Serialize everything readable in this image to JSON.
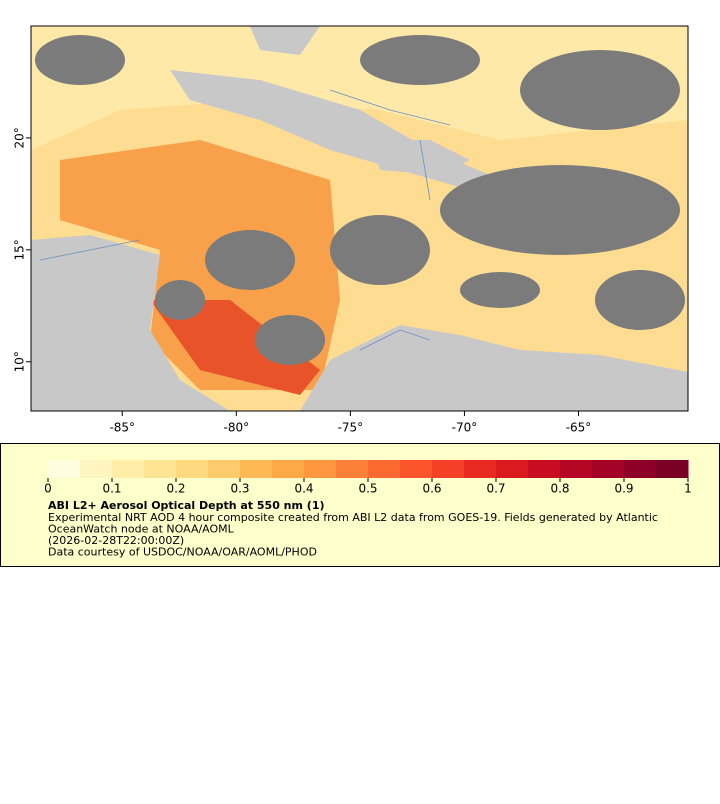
{
  "map": {
    "xlim": [
      -89,
      -60.2
    ],
    "ylim": [
      7.8,
      25
    ],
    "xticks": [
      {
        "value": -85,
        "label": "-85°"
      },
      {
        "value": -80,
        "label": "-80°"
      },
      {
        "value": -75,
        "label": "-75°"
      },
      {
        "value": -70,
        "label": "-70°"
      },
      {
        "value": -65,
        "label": "-65°"
      }
    ],
    "yticks": [
      {
        "value": 10,
        "label": "10°"
      },
      {
        "value": 15,
        "label": "15°"
      },
      {
        "value": 20,
        "label": "20°"
      }
    ]
  },
  "colorbar": {
    "range": [
      0,
      1
    ],
    "ticks": [
      0,
      0.1,
      0.2,
      0.3,
      0.4,
      0.5,
      0.6,
      0.7,
      0.8,
      0.9,
      1
    ],
    "colors": [
      "#fffde0",
      "#fff5c0",
      "#ffeda8",
      "#fee594",
      "#fed980",
      "#fecb6c",
      "#feb856",
      "#fea848",
      "#fd963f",
      "#fd8038",
      "#fc6a31",
      "#fc552b",
      "#f44027",
      "#e82a22",
      "#da1a1f",
      "#c80d22",
      "#b50625",
      "#a30126",
      "#8e0028",
      "#7a0026"
    ],
    "title": "ABI L2+ Aerosol Optical Depth at 550 nm (1)",
    "lines": [
      "Experimental NRT AOD 4 hour composite created from ABI L2 data from GOES-19. Fields generated by Atlantic",
      "OceanWatch node at NOAA/AOML",
      "(2026-02-28T22:00:00Z)",
      "Data courtesy of USDOC/NOAA/OAR/AOML/PHOD"
    ]
  }
}
